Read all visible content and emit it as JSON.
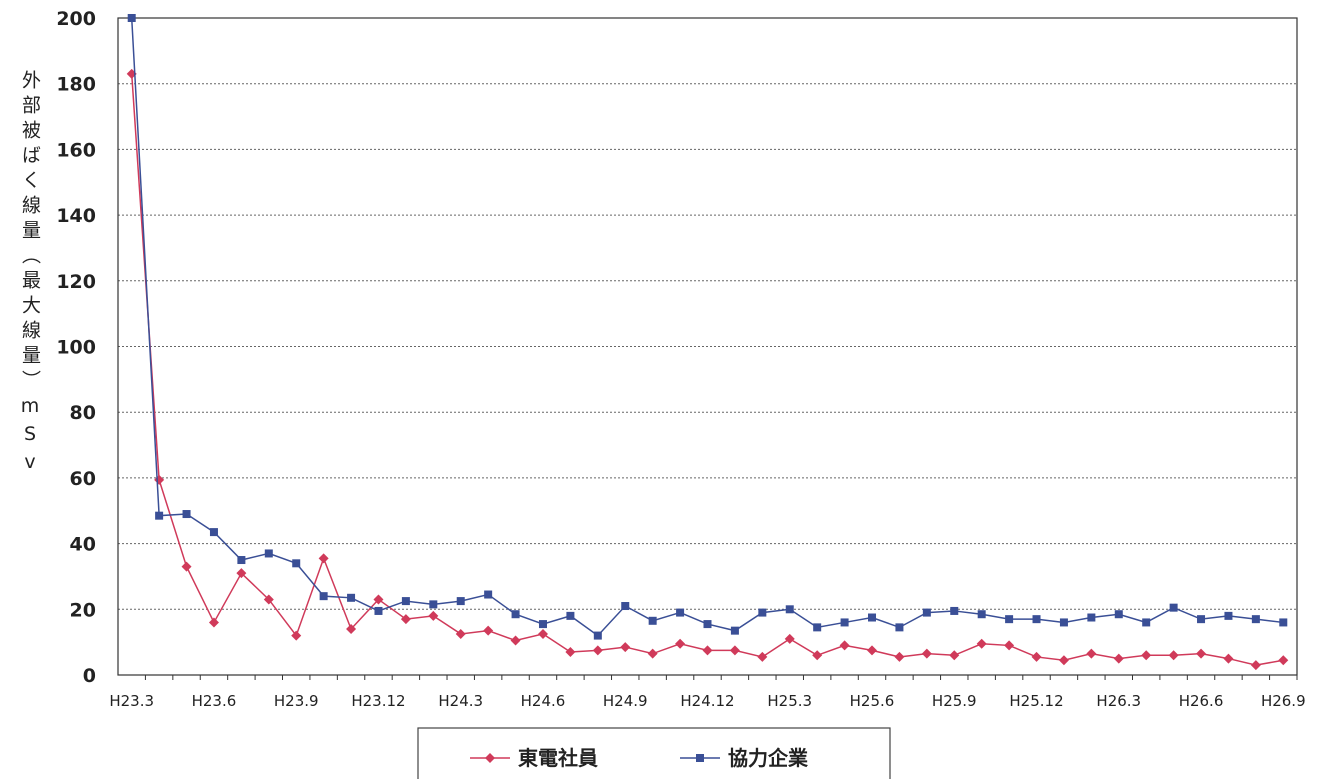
{
  "chart_data": {
    "type": "line",
    "ylabel": "外部被ばく線量（最大線量）mSv",
    "categories": [
      "H23.3",
      null,
      null,
      "H23.6",
      null,
      null,
      "H23.9",
      null,
      null,
      "H23.12",
      null,
      null,
      "H24.3",
      null,
      null,
      "H24.6",
      null,
      null,
      "H24.9",
      null,
      null,
      "H24.12",
      null,
      null,
      "H25.3",
      null,
      null,
      "H25.6",
      null,
      null,
      "H25.9",
      null,
      null,
      "H25.12",
      null,
      null,
      "H26.3",
      null,
      null,
      "H26.6",
      null,
      null,
      "H26.9"
    ],
    "series": [
      {
        "name": "東電社員",
        "color": "#d03a5a",
        "marker": "diamond",
        "values": [
          183,
          59.4,
          33,
          16,
          31,
          23,
          12,
          35.5,
          14,
          23,
          17,
          18,
          12.5,
          13.5,
          10.5,
          12.5,
          7,
          7.5,
          8.5,
          6.5,
          9.5,
          7.5,
          7.5,
          5.5,
          11,
          6,
          9,
          7.5,
          5.5,
          6.5,
          6,
          9.5,
          9,
          5.5,
          4.5,
          6.5,
          5,
          6,
          6,
          6.5,
          5,
          3,
          4.5
        ]
      },
      {
        "name": "協力企業",
        "color": "#3a4f96",
        "marker": "square",
        "values": [
          200,
          48.5,
          49,
          43.5,
          35,
          37,
          34,
          24,
          23.5,
          19.5,
          22.5,
          21.5,
          22.5,
          24.5,
          18.5,
          15.5,
          18,
          12,
          21,
          16.5,
          19,
          15.5,
          13.5,
          19,
          20,
          14.5,
          16,
          17.5,
          14.5,
          19,
          19.5,
          18.5,
          17,
          17,
          16,
          17.5,
          18.5,
          16,
          20.5,
          17,
          18,
          17,
          16
        ]
      }
    ],
    "ylim": [
      0,
      200
    ],
    "yticks": [
      0,
      20,
      40,
      60,
      80,
      100,
      120,
      140,
      160,
      180,
      200
    ],
    "grid": true
  }
}
